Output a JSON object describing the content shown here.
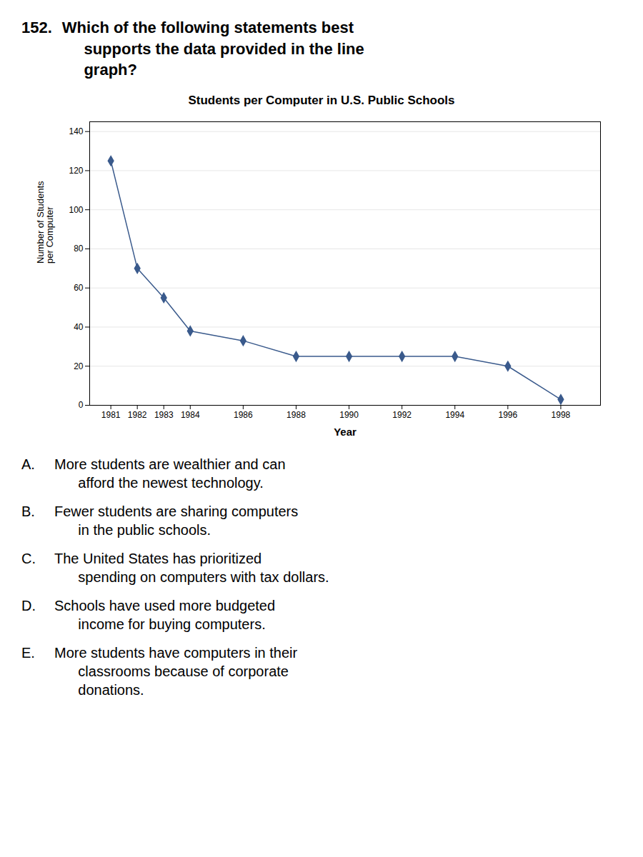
{
  "question_number": "152.",
  "question_text": "Which of the following statements best\n     supports the data provided in the line\n     graph?",
  "answer_options": [
    {
      "label": "A.",
      "text": "More students are wealthier and can\n      afford the newest technology."
    },
    {
      "label": "B.",
      "text": "Fewer students are sharing computers\n      in the public schools."
    },
    {
      "label": "C.",
      "text": "The United States has prioritized\n      spending on computers with tax dollars."
    },
    {
      "label": "D.",
      "text": "Schools have used more budgeted\n      income for buying computers."
    },
    {
      "label": "E.",
      "text": "More students have computers in their\n      classrooms because of corporate\n      donations."
    }
  ],
  "chart_data": {
    "type": "line",
    "title": "Students per Computer in U.S. Public Schools",
    "xlabel": "Year",
    "ylabel": "Number of Students\nper Computer",
    "x": [
      1981,
      1982,
      1983,
      1984,
      1986,
      1988,
      1990,
      1992,
      1994,
      1996,
      1998
    ],
    "values": [
      125,
      70,
      55,
      38,
      33,
      25,
      25,
      25,
      25,
      20,
      3
    ],
    "xlim": [
      1980.2,
      1999.5
    ],
    "xticks": [
      1981,
      1982,
      1983,
      1984,
      1986,
      1988,
      1990,
      1992,
      1994,
      1996,
      1998
    ],
    "ylim": [
      0,
      145
    ],
    "yticks": [
      0,
      20,
      40,
      60,
      80,
      100,
      120,
      140
    ],
    "color": "#3a5a8c",
    "marker": "diamond",
    "grid": true
  }
}
